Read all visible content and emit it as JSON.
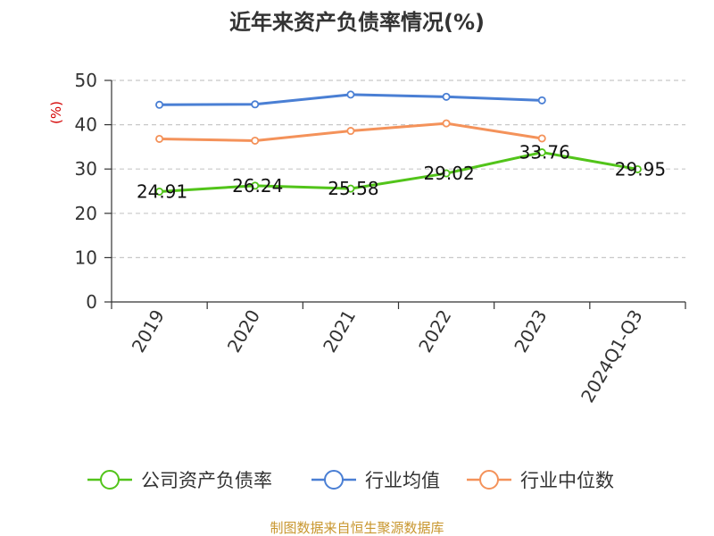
{
  "chart_data": {
    "type": "line",
    "title": "近年来资产负债率情况(%)",
    "ylabel": "(%)",
    "ylim": [
      0,
      50
    ],
    "yticks": [
      0,
      10,
      20,
      30,
      40,
      50
    ],
    "categories": [
      "2019",
      "2020",
      "2021",
      "2022",
      "2023",
      "2024Q1-Q3"
    ],
    "grid": true,
    "legend_position": "bottom",
    "series": [
      {
        "name": "公司资产负债率",
        "color": "#52c41a",
        "values": [
          24.91,
          26.24,
          25.58,
          29.02,
          33.76,
          29.95
        ],
        "labels": [
          "24.91",
          "26.24",
          "25.58",
          "29.02",
          "33.76",
          "29.95"
        ]
      },
      {
        "name": "行业均值",
        "color": "#4a7fd4",
        "values": [
          44.5,
          44.6,
          46.8,
          46.3,
          45.5,
          null
        ]
      },
      {
        "name": "行业中位数",
        "color": "#f4925a",
        "values": [
          36.8,
          36.4,
          38.6,
          40.3,
          36.9,
          null
        ]
      }
    ]
  },
  "footer": {
    "source": "制图数据来自恒生聚源数据库"
  }
}
